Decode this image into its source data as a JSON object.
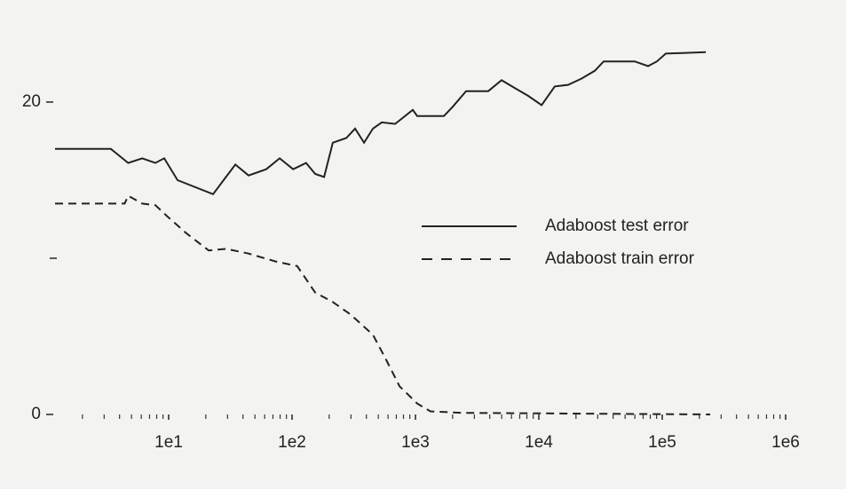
{
  "chart_data": {
    "type": "line",
    "log_x": true,
    "xlim": [
      1,
      1200000
    ],
    "ylim": [
      0,
      24
    ],
    "xticks": [
      {
        "value": 10,
        "label": "1e1"
      },
      {
        "value": 100,
        "label": "1e2"
      },
      {
        "value": 1000,
        "label": "1e3"
      },
      {
        "value": 10000,
        "label": "1e4"
      },
      {
        "value": 100000,
        "label": "1e5"
      },
      {
        "value": 1000000,
        "label": "1e6"
      }
    ],
    "minor_xticks": [
      2,
      3,
      4,
      5,
      6,
      7,
      8,
      9,
      20,
      30,
      40,
      50,
      60,
      70,
      80,
      90,
      200,
      300,
      400,
      500,
      600,
      700,
      800,
      900,
      2000,
      3000,
      4000,
      5000,
      6000,
      7000,
      8000,
      9000,
      20000,
      30000,
      40000,
      50000,
      60000,
      70000,
      80000,
      90000,
      200000,
      300000,
      400000,
      500000,
      600000,
      700000,
      800000,
      900000
    ],
    "yticks": [
      0,
      20
    ],
    "minor_yticks": [
      10
    ],
    "series": [
      {
        "name": "Adaboost test error",
        "color": "#222222",
        "dash": false,
        "x": [
          1.2,
          3.4,
          4.7,
          6.1,
          7.8,
          9.2,
          11.8,
          22.9,
          34.7,
          44.4,
          61.8,
          79.3,
          102,
          130,
          154,
          182,
          214,
          275,
          324,
          383,
          452,
          533,
          684,
          951,
          1033,
          1698,
          2005,
          2570,
          3890,
          4989,
          6397,
          8204,
          10520,
          13460,
          17260,
          22130,
          28380,
          33500,
          46670,
          59840,
          76740,
          90560,
          106900,
          225400
        ],
        "values": [
          17.0,
          17.0,
          16.1,
          16.4,
          16.1,
          16.4,
          15.0,
          14.1,
          16.0,
          15.3,
          15.7,
          16.4,
          15.7,
          16.1,
          15.4,
          15.2,
          17.4,
          17.7,
          18.3,
          17.4,
          18.3,
          18.7,
          18.6,
          19.5,
          19.1,
          19.1,
          19.7,
          20.7,
          20.7,
          21.4,
          20.9,
          20.4,
          19.8,
          21.0,
          21.1,
          21.5,
          22.0,
          22.6,
          22.6,
          22.6,
          22.3,
          22.6,
          23.1,
          23.2
        ]
      },
      {
        "name": "Adaboost train error",
        "color": "#222222",
        "dash": true,
        "x": [
          1.2,
          4.4,
          4.7,
          6.1,
          7.8,
          10,
          13.9,
          21.1,
          29.3,
          44.4,
          73,
          110,
          154,
          214,
          298,
          452,
          579,
          743,
          1033,
          1324,
          2366,
          244500
        ],
        "values": [
          13.5,
          13.5,
          14.0,
          13.5,
          13.4,
          12.6,
          11.6,
          10.5,
          10.6,
          10.3,
          9.8,
          9.5,
          7.8,
          7.2,
          6.4,
          5.1,
          3.5,
          1.8,
          0.7,
          0.2,
          0.1,
          0
        ]
      }
    ]
  }
}
